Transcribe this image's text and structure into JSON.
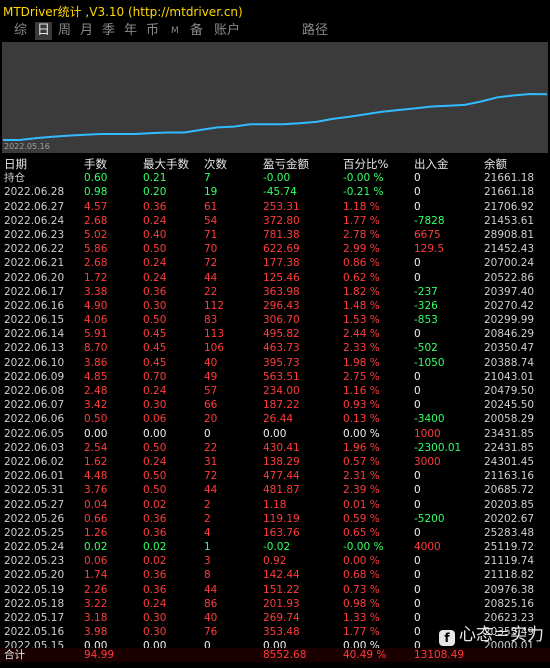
{
  "window": {
    "title": "MTDriver统计 ,V3.10 (http://mtdriver.cn)"
  },
  "tabs": [
    {
      "label": "综",
      "active": false
    },
    {
      "label": "日",
      "active": true
    },
    {
      "label": "周",
      "active": false
    },
    {
      "label": "月",
      "active": false
    },
    {
      "label": "季",
      "active": false
    },
    {
      "label": "年",
      "active": false
    },
    {
      "label": "币",
      "active": false
    },
    {
      "label": "M",
      "active": false
    },
    {
      "label": "备",
      "active": false
    },
    {
      "label": "账户",
      "active": false
    },
    {
      "label": "路径",
      "active": false
    }
  ],
  "equity_chart": {
    "start_label": "2022.05.16",
    "line_color": "#33bbff",
    "background": "#3b3b3b"
  },
  "table": {
    "headers": [
      "日期",
      "手数",
      "最大手数",
      "次数",
      "盈亏金额",
      "百分比%",
      "出入金",
      "余额"
    ],
    "rows": [
      {
        "date": "持仓",
        "lots": "0.60",
        "max_lots": "0.21",
        "count": "7",
        "pnl": "-0.00",
        "pct": "-0.00 %",
        "io": "0",
        "balance": "21661.18",
        "color": "green"
      },
      {
        "date": "2022.06.28",
        "lots": "0.98",
        "max_lots": "0.20",
        "count": "19",
        "pnl": "-45.74",
        "pct": "-0.21 %",
        "io": "0",
        "balance": "21661.18",
        "color": "green"
      },
      {
        "date": "2022.06.27",
        "lots": "4.57",
        "max_lots": "0.36",
        "count": "61",
        "pnl": "253.31",
        "pct": "1.18 %",
        "io": "0",
        "balance": "21706.92",
        "color": "red"
      },
      {
        "date": "2022.06.24",
        "lots": "2.68",
        "max_lots": "0.24",
        "count": "54",
        "pnl": "372.80",
        "pct": "1.77 %",
        "io": "-7828",
        "balance": "21453.61",
        "color": "red"
      },
      {
        "date": "2022.06.23",
        "lots": "5.02",
        "max_lots": "0.40",
        "count": "71",
        "pnl": "781.38",
        "pct": "2.78 %",
        "io": "6675",
        "balance": "28908.81",
        "color": "red"
      },
      {
        "date": "2022.06.22",
        "lots": "5.86",
        "max_lots": "0.50",
        "count": "70",
        "pnl": "622.69",
        "pct": "2.99 %",
        "io": "129.5",
        "balance": "21452.43",
        "color": "red"
      },
      {
        "date": "2022.06.21",
        "lots": "2.68",
        "max_lots": "0.24",
        "count": "72",
        "pnl": "177.38",
        "pct": "0.86 %",
        "io": "0",
        "balance": "20700.24",
        "color": "red"
      },
      {
        "date": "2022.06.20",
        "lots": "1.72",
        "max_lots": "0.24",
        "count": "44",
        "pnl": "125.46",
        "pct": "0.62 %",
        "io": "0",
        "balance": "20522.86",
        "color": "red"
      },
      {
        "date": "2022.06.17",
        "lots": "3.38",
        "max_lots": "0.36",
        "count": "22",
        "pnl": "363.98",
        "pct": "1.82 %",
        "io": "-237",
        "balance": "20397.40",
        "color": "red"
      },
      {
        "date": "2022.06.16",
        "lots": "4.90",
        "max_lots": "0.30",
        "count": "112",
        "pnl": "296.43",
        "pct": "1.48 %",
        "io": "-326",
        "balance": "20270.42",
        "color": "red"
      },
      {
        "date": "2022.06.15",
        "lots": "4.06",
        "max_lots": "0.50",
        "count": "83",
        "pnl": "306.70",
        "pct": "1.53 %",
        "io": "-853",
        "balance": "20299.99",
        "color": "red"
      },
      {
        "date": "2022.06.14",
        "lots": "5.91",
        "max_lots": "0.45",
        "count": "113",
        "pnl": "495.82",
        "pct": "2.44 %",
        "io": "0",
        "balance": "20846.29",
        "color": "red"
      },
      {
        "date": "2022.06.13",
        "lots": "8.70",
        "max_lots": "0.45",
        "count": "106",
        "pnl": "463.73",
        "pct": "2.33 %",
        "io": "-502",
        "balance": "20350.47",
        "color": "red"
      },
      {
        "date": "2022.06.10",
        "lots": "3.86",
        "max_lots": "0.45",
        "count": "40",
        "pnl": "395.73",
        "pct": "1.98 %",
        "io": "-1050",
        "balance": "20388.74",
        "color": "red"
      },
      {
        "date": "2022.06.09",
        "lots": "4.85",
        "max_lots": "0.70",
        "count": "49",
        "pnl": "563.51",
        "pct": "2.75 %",
        "io": "0",
        "balance": "21043.01",
        "color": "red"
      },
      {
        "date": "2022.06.08",
        "lots": "2.48",
        "max_lots": "0.24",
        "count": "57",
        "pnl": "234.00",
        "pct": "1.16 %",
        "io": "0",
        "balance": "20479.50",
        "color": "red"
      },
      {
        "date": "2022.06.07",
        "lots": "3.42",
        "max_lots": "0.30",
        "count": "66",
        "pnl": "187.22",
        "pct": "0.93 %",
        "io": "0",
        "balance": "20245.50",
        "color": "red"
      },
      {
        "date": "2022.06.06",
        "lots": "0.50",
        "max_lots": "0.06",
        "count": "20",
        "pnl": "26.44",
        "pct": "0.13 %",
        "io": "-3400",
        "balance": "20058.29",
        "color": "red"
      },
      {
        "date": "2022.06.05",
        "lots": "0.00",
        "max_lots": "0.00",
        "count": "0",
        "pnl": "0.00",
        "pct": "0.00 %",
        "io": "1000",
        "balance": "23431.85",
        "color": "white"
      },
      {
        "date": "2022.06.03",
        "lots": "2.54",
        "max_lots": "0.50",
        "count": "22",
        "pnl": "430.41",
        "pct": "1.96 %",
        "io": "-2300.01",
        "balance": "22431.85",
        "color": "red"
      },
      {
        "date": "2022.06.02",
        "lots": "1.62",
        "max_lots": "0.24",
        "count": "31",
        "pnl": "138.29",
        "pct": "0.57 %",
        "io": "3000",
        "balance": "24301.45",
        "color": "red"
      },
      {
        "date": "2022.06.01",
        "lots": "4.48",
        "max_lots": "0.50",
        "count": "72",
        "pnl": "477.44",
        "pct": "2.31 %",
        "io": "0",
        "balance": "21163.16",
        "color": "red"
      },
      {
        "date": "2022.05.31",
        "lots": "3.76",
        "max_lots": "0.50",
        "count": "44",
        "pnl": "481.87",
        "pct": "2.39 %",
        "io": "0",
        "balance": "20685.72",
        "color": "red"
      },
      {
        "date": "2022.05.27",
        "lots": "0.04",
        "max_lots": "0.02",
        "count": "2",
        "pnl": "1.18",
        "pct": "0.01 %",
        "io": "0",
        "balance": "20203.85",
        "color": "red"
      },
      {
        "date": "2022.05.26",
        "lots": "0.66",
        "max_lots": "0.36",
        "count": "2",
        "pnl": "119.19",
        "pct": "0.59 %",
        "io": "-5200",
        "balance": "20202.67",
        "color": "red"
      },
      {
        "date": "2022.05.25",
        "lots": "1.26",
        "max_lots": "0.36",
        "count": "4",
        "pnl": "163.76",
        "pct": "0.65 %",
        "io": "0",
        "balance": "25283.48",
        "color": "red"
      },
      {
        "date": "2022.05.24",
        "lots": "0.02",
        "max_lots": "0.02",
        "count": "1",
        "pnl": "-0.02",
        "pct": "-0.00 %",
        "io": "4000",
        "balance": "25119.72",
        "color": "green"
      },
      {
        "date": "2022.05.23",
        "lots": "0.06",
        "max_lots": "0.02",
        "count": "3",
        "pnl": "0.92",
        "pct": "0.00 %",
        "io": "0",
        "balance": "21119.74",
        "color": "red"
      },
      {
        "date": "2022.05.20",
        "lots": "1.74",
        "max_lots": "0.36",
        "count": "8",
        "pnl": "142.44",
        "pct": "0.68 %",
        "io": "0",
        "balance": "21118.82",
        "color": "red"
      },
      {
        "date": "2022.05.19",
        "lots": "2.26",
        "max_lots": "0.36",
        "count": "44",
        "pnl": "151.22",
        "pct": "0.73 %",
        "io": "0",
        "balance": "20976.38",
        "color": "red"
      },
      {
        "date": "2022.05.18",
        "lots": "3.22",
        "max_lots": "0.24",
        "count": "86",
        "pnl": "201.93",
        "pct": "0.98 %",
        "io": "0",
        "balance": "20825.16",
        "color": "red"
      },
      {
        "date": "2022.05.17",
        "lots": "3.18",
        "max_lots": "0.30",
        "count": "40",
        "pnl": "269.74",
        "pct": "1.33 %",
        "io": "0",
        "balance": "20623.23",
        "color": "red"
      },
      {
        "date": "2022.05.16",
        "lots": "3.98",
        "max_lots": "0.30",
        "count": "76",
        "pnl": "353.48",
        "pct": "1.77 %",
        "io": "0",
        "balance": "20353.49",
        "color": "red"
      },
      {
        "date": "2022.05.15",
        "lots": "0.00",
        "max_lots": "0.00",
        "count": "0",
        "pnl": "0.00",
        "pct": "0.00 %",
        "io": "0",
        "balance": "20000.01",
        "color": "white"
      }
    ],
    "totals": {
      "label": "合计",
      "lots": "94.99",
      "pnl": "8552.68",
      "pct": "40.49 %",
      "io": "13108.49"
    }
  },
  "watermark": {
    "icon": "f",
    "text": "心态＝实力"
  }
}
